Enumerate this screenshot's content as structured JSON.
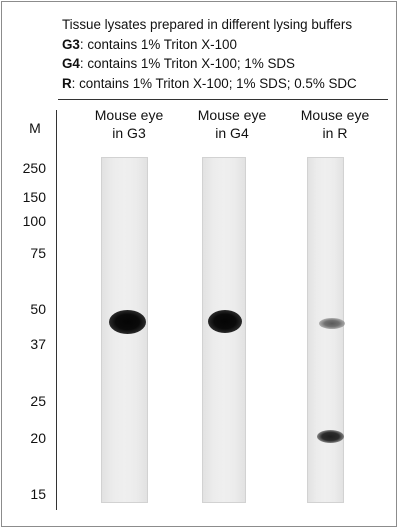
{
  "legend": {
    "title": "Tissue lysates prepared in different lysing buffers",
    "buffers": [
      {
        "code": "G3",
        "desc": ": contains 1% Triton X-100"
      },
      {
        "code": "G4",
        "desc": ": contains 1% Triton X-100; 1% SDS"
      },
      {
        "code": "R",
        "desc": ": contains 1% Triton X-100; 1% SDS; 0.5% SDC"
      }
    ]
  },
  "marker": {
    "header": "M",
    "sizes": [
      "250",
      "150",
      "100",
      "75",
      "50",
      "37",
      "25",
      "20",
      "15"
    ]
  },
  "lanes": [
    {
      "line1": "Mouse eye",
      "line2": "in G3"
    },
    {
      "line1": "Mouse eye",
      "line2": "in G4"
    },
    {
      "line1": "Mouse eye",
      "line2": "in R"
    }
  ]
}
